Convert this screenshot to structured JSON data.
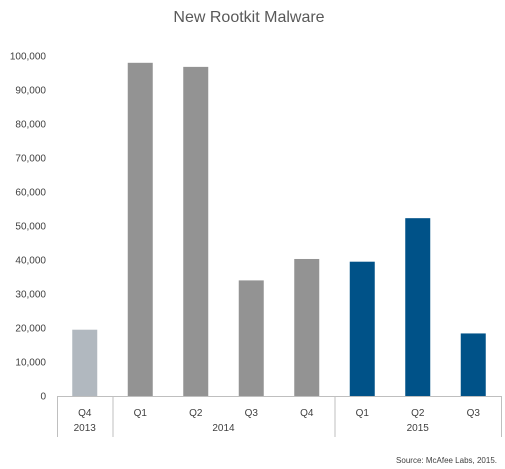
{
  "chart_data": {
    "type": "bar",
    "title": "New Rootkit Malware",
    "categories": [
      "Q4",
      "Q1",
      "Q2",
      "Q3",
      "Q4",
      "Q1",
      "Q2",
      "Q3"
    ],
    "groups": [
      {
        "label": "2013",
        "span": 1
      },
      {
        "label": "2014",
        "span": 4
      },
      {
        "label": "2015",
        "span": 3
      }
    ],
    "values": [
      19500,
      98000,
      96800,
      34000,
      40300,
      39500,
      52300,
      18400
    ],
    "bar_colors": [
      "#b1b8bf",
      "#939393",
      "#939393",
      "#939393",
      "#939393",
      "#005288",
      "#005288",
      "#005288"
    ],
    "ylim": [
      0,
      100000
    ],
    "yticks": [
      0,
      10000,
      20000,
      30000,
      40000,
      50000,
      60000,
      70000,
      80000,
      90000,
      100000
    ],
    "ytick_labels": [
      "0",
      "10,000",
      "20,000",
      "30,000",
      "40,000",
      "50,000",
      "60,000",
      "70,000",
      "80,000",
      "90,000",
      "100,000"
    ],
    "grid": false,
    "source": "Source: McAfee Labs, 2015."
  }
}
